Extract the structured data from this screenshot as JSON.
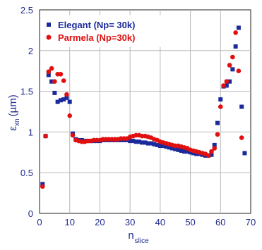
{
  "chart_data": {
    "type": "scatter",
    "xlabel": "n",
    "xlabel_sub": "slice",
    "ylabel": "ε",
    "ylabel_sub": "xn",
    "ylabel_unit": "(µm)",
    "xlim": [
      0,
      70
    ],
    "ylim": [
      0,
      2.5
    ],
    "xticks": [
      0,
      10,
      20,
      30,
      40,
      50,
      60,
      70
    ],
    "yticks": [
      0,
      0.5,
      1,
      1.5,
      2,
      2.5
    ],
    "ytick_labels": [
      "0",
      "0.5",
      "1",
      "1.5",
      "2",
      "2.5"
    ],
    "grid": true,
    "legend_position": "top-left",
    "series": [
      {
        "name": "Elegant (Np= 30k)",
        "color": "#1a2a9c",
        "marker": "square",
        "x": [
          1,
          2,
          3,
          4,
          5,
          6,
          7,
          8,
          9,
          10,
          11,
          12,
          13,
          14,
          15,
          16,
          17,
          18,
          19,
          20,
          21,
          22,
          23,
          24,
          25,
          26,
          27,
          28,
          29,
          30,
          31,
          32,
          33,
          34,
          35,
          36,
          37,
          38,
          39,
          40,
          41,
          42,
          43,
          44,
          45,
          46,
          47,
          48,
          49,
          50,
          51,
          52,
          53,
          54,
          55,
          56,
          57,
          58,
          59,
          60,
          61,
          62,
          63,
          64,
          65,
          66,
          67,
          68
        ],
        "y": [
          0.36,
          0.95,
          1.7,
          1.62,
          1.48,
          1.37,
          1.39,
          1.4,
          1.42,
          1.37,
          0.98,
          0.91,
          0.9,
          0.9,
          0.89,
          0.89,
          0.89,
          0.89,
          0.89,
          0.89,
          0.9,
          0.9,
          0.9,
          0.9,
          0.9,
          0.9,
          0.9,
          0.9,
          0.9,
          0.89,
          0.89,
          0.88,
          0.88,
          0.87,
          0.87,
          0.86,
          0.86,
          0.85,
          0.84,
          0.83,
          0.83,
          0.82,
          0.81,
          0.8,
          0.79,
          0.78,
          0.77,
          0.76,
          0.76,
          0.75,
          0.74,
          0.73,
          0.73,
          0.72,
          0.71,
          0.71,
          0.72,
          0.84,
          1.11,
          1.4,
          1.56,
          1.57,
          1.62,
          1.77,
          2.05,
          2.28,
          1.31,
          0.74
        ]
      },
      {
        "name": "Parmela (Np=30k)",
        "color": "#e01010",
        "marker": "circle",
        "x": [
          1,
          2,
          3,
          4,
          5,
          6,
          7,
          8,
          9,
          10,
          11,
          12,
          13,
          14,
          15,
          16,
          17,
          18,
          19,
          20,
          21,
          22,
          23,
          24,
          25,
          26,
          27,
          28,
          29,
          30,
          31,
          32,
          33,
          34,
          35,
          36,
          37,
          38,
          39,
          40,
          41,
          42,
          43,
          44,
          45,
          46,
          47,
          48,
          49,
          50,
          51,
          52,
          53,
          54,
          55,
          56,
          57,
          58,
          59,
          60,
          61,
          62,
          63,
          64,
          65,
          66,
          67
        ],
        "y": [
          0.33,
          0.95,
          1.74,
          1.78,
          1.62,
          1.71,
          1.71,
          1.63,
          1.46,
          1.2,
          0.96,
          0.9,
          0.89,
          0.88,
          0.88,
          0.89,
          0.89,
          0.9,
          0.9,
          0.9,
          0.91,
          0.91,
          0.91,
          0.91,
          0.91,
          0.91,
          0.92,
          0.92,
          0.92,
          0.94,
          0.95,
          0.96,
          0.96,
          0.95,
          0.95,
          0.94,
          0.93,
          0.91,
          0.9,
          0.88,
          0.87,
          0.86,
          0.85,
          0.84,
          0.83,
          0.83,
          0.82,
          0.81,
          0.8,
          0.78,
          0.77,
          0.76,
          0.75,
          0.74,
          0.73,
          0.71,
          0.76,
          0.8,
          0.97,
          1.31,
          1.57,
          1.62,
          1.82,
          1.92,
          2.22,
          1.75,
          0.93
        ]
      }
    ]
  }
}
